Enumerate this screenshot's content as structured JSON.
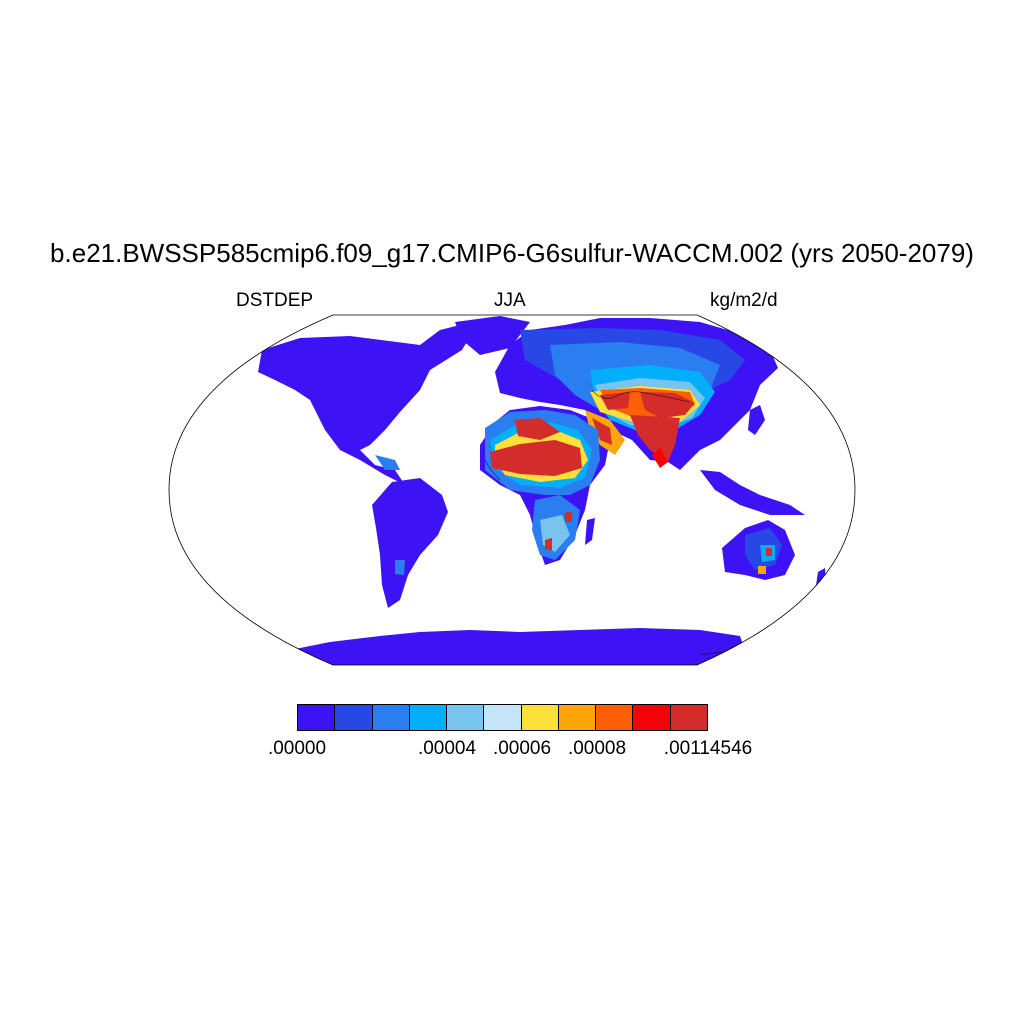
{
  "title": "b.e21.BWSSP585cmip6.f09_g17.CMIP6-G6sulfur-WACCM.002 (yrs 2050-2079)",
  "left_label": "DSTDEP",
  "center_label": "JJA",
  "right_label": "kg/m2/d",
  "map": {
    "projection": "Robinson",
    "ocean_color": "#ffffff",
    "base_land_color": "#3d12f5",
    "coastline_color": "#000000"
  },
  "colorbar": {
    "colors": [
      "#3d12f5",
      "#2848e6",
      "#2a7ef0",
      "#03aefb",
      "#77c4ee",
      "#c6e5f8",
      "#fee03a",
      "#fea507",
      "#fd5f07",
      "#f50107",
      "#d42b2b"
    ],
    "labels": [
      ".00000",
      ".00004",
      ".00006",
      ".00008",
      ".00114546"
    ]
  }
}
